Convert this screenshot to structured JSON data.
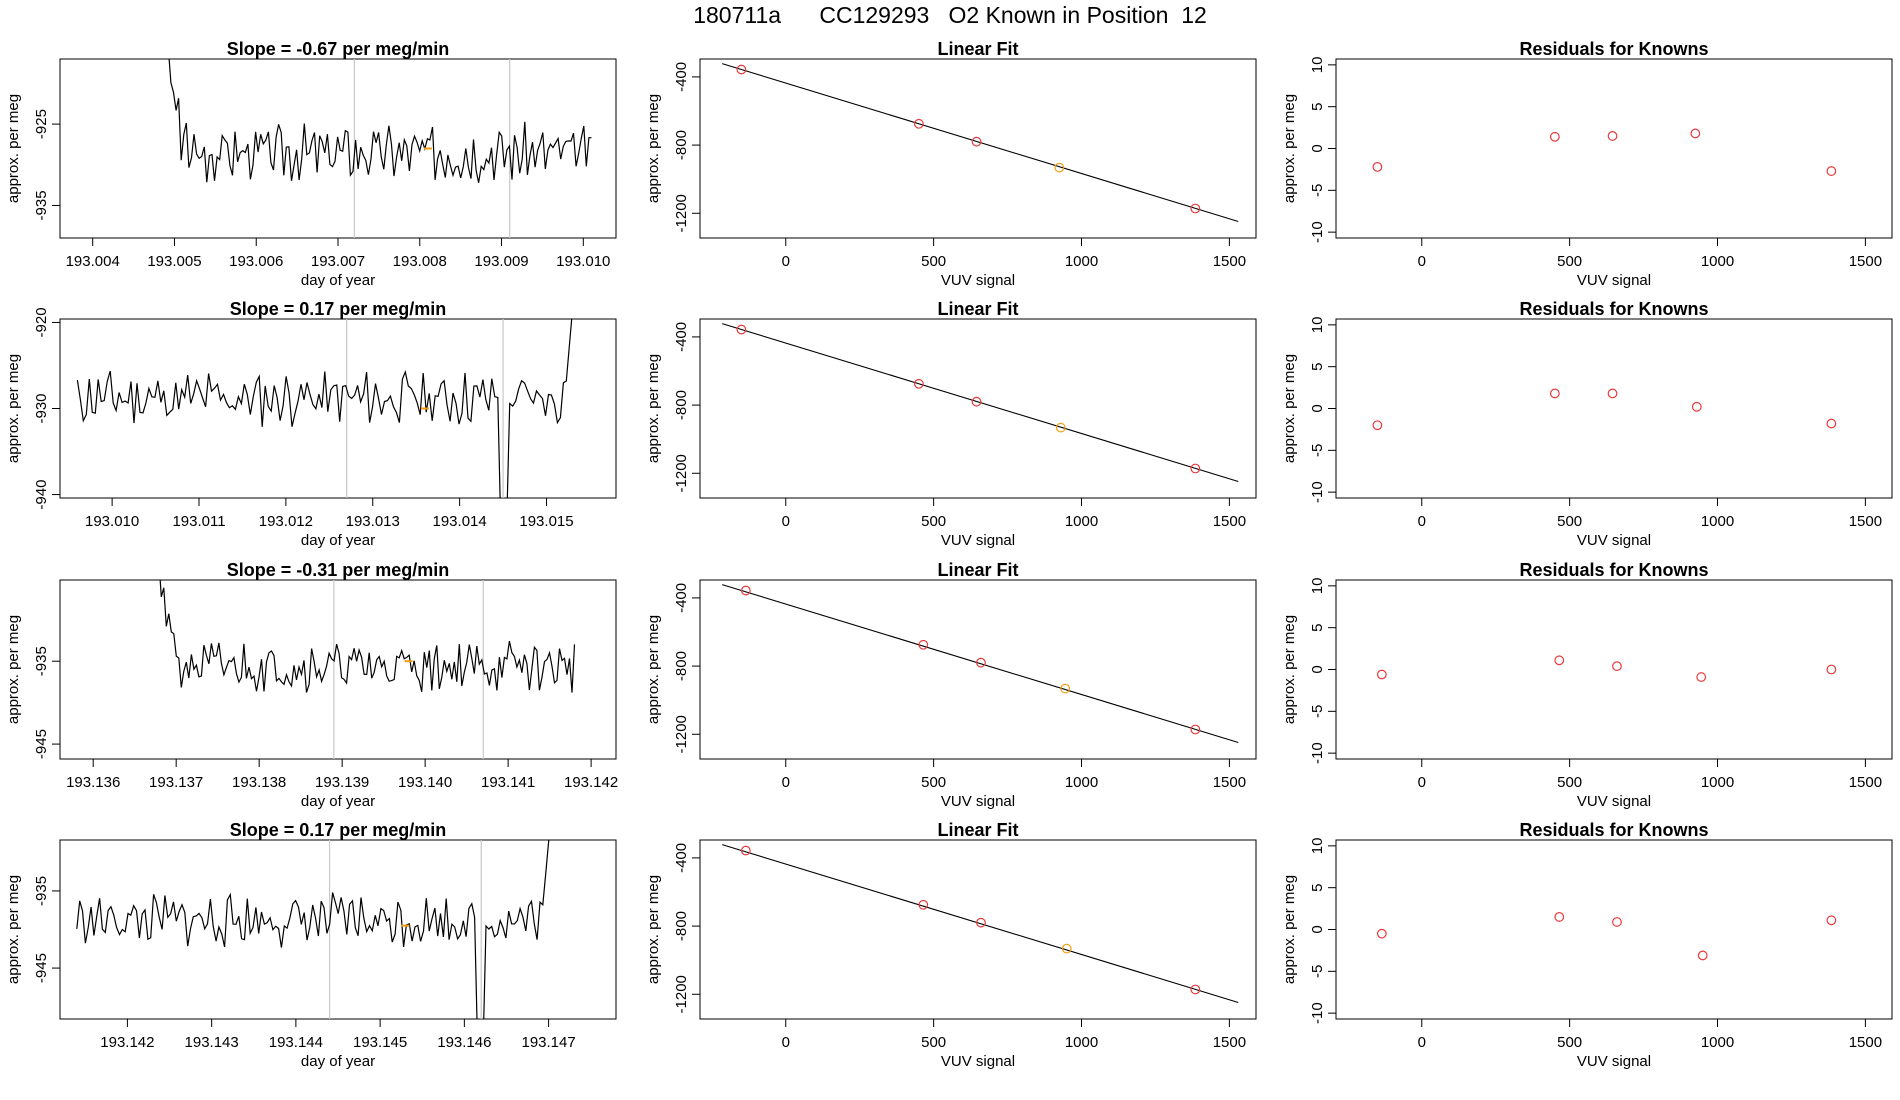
{
  "figure_title": "180711a      CC129293   O2 Known in Position  12",
  "colors": {
    "line": "#000000",
    "marker": "#e8393b",
    "highlight": "#f39c12",
    "guide": "#c8c8c8"
  },
  "chart_data": [
    {
      "type": "line",
      "row": 0,
      "panel": "timeseries",
      "title": "Slope =  -0.67  per meg/min",
      "xlabel": "day of year",
      "ylabel": "approx. per meg",
      "xlim": [
        193.0036,
        193.0104
      ],
      "ylim": [
        -939,
        -917
      ],
      "xticks": [
        193.004,
        193.005,
        193.006,
        193.007,
        193.008,
        193.009,
        193.01
      ],
      "xtick_labels": [
        "193.004",
        "193.005",
        "193.006",
        "193.007",
        "193.008",
        "193.009",
        "193.010"
      ],
      "yticks": [
        -925,
        -935
      ],
      "ytick_labels": [
        "-925",
        "-935"
      ],
      "vlines": [
        193.0072,
        193.0091
      ],
      "highlight_point": {
        "x": 193.0081,
        "y": -928
      },
      "x_start": 193.0048,
      "x_end": 193.0101,
      "y_base": -928.5,
      "y_amp": 2.8,
      "start_y": -908,
      "spike_at_end": false,
      "spike_at": null,
      "seed": 3
    },
    {
      "type": "scatter",
      "row": 0,
      "panel": "fit",
      "title": "Linear Fit",
      "xlabel": "VUV signal",
      "ylabel": "approx. per meg",
      "xlim": [
        -290,
        1590
      ],
      "ylim": [
        -1345,
        -295
      ],
      "xticks": [
        0,
        500,
        1000,
        1500
      ],
      "xtick_labels": [
        "0",
        "500",
        "1000",
        "1500"
      ],
      "yticks": [
        -400,
        -800,
        -1200
      ],
      "ytick_labels": [
        "-400",
        "-800",
        "-1200"
      ],
      "line": [
        [
          -215,
          -322
        ],
        [
          1530,
          -1248
        ]
      ],
      "points": [
        {
          "x": -150,
          "y": -357
        },
        {
          "x": 450,
          "y": -675
        },
        {
          "x": 645,
          "y": -780
        },
        {
          "x": 925,
          "y": -932,
          "highlight": true
        },
        {
          "x": 1385,
          "y": -1172
        }
      ]
    },
    {
      "type": "scatter",
      "row": 0,
      "panel": "residuals",
      "title": "Residuals for Knowns",
      "xlabel": "VUV signal",
      "ylabel": "approx. per meg",
      "xlim": [
        -290,
        1590
      ],
      "ylim": [
        -10.7,
        10.7
      ],
      "xticks": [
        0,
        500,
        1000,
        1500
      ],
      "xtick_labels": [
        "0",
        "500",
        "1000",
        "1500"
      ],
      "yticks": [
        10,
        5,
        0,
        -5,
        -10
      ],
      "ytick_labels": [
        "10",
        "5",
        "0",
        "-5",
        "-10"
      ],
      "points": [
        {
          "x": -150,
          "y": -2.2
        },
        {
          "x": 450,
          "y": 1.4
        },
        {
          "x": 645,
          "y": 1.5
        },
        {
          "x": 925,
          "y": 1.8
        },
        {
          "x": 1385,
          "y": -2.7
        }
      ]
    },
    {
      "type": "line",
      "row": 1,
      "panel": "timeseries",
      "title": "Slope =  0.17  per meg/min",
      "xlabel": "day of year",
      "ylabel": "approx. per meg",
      "xlim": [
        193.0094,
        193.0158
      ],
      "ylim": [
        -940.4,
        -919.6
      ],
      "xticks": [
        193.01,
        193.011,
        193.012,
        193.013,
        193.014,
        193.015
      ],
      "xtick_labels": [
        "193.010",
        "193.011",
        "193.012",
        "193.013",
        "193.014",
        "193.015"
      ],
      "yticks": [
        -920,
        -930,
        -940
      ],
      "ytick_labels": [
        "-920",
        "-930",
        "-940"
      ],
      "vlines": [
        193.0127,
        193.0145
      ],
      "highlight_point": {
        "x": 193.0136,
        "y": -930
      },
      "x_start": 193.0096,
      "x_end": 193.0154,
      "y_base": -928.8,
      "y_amp": 2.6,
      "start_y": null,
      "spike_at_end": true,
      "spike_at": 193.0145,
      "seed": 11
    },
    {
      "type": "scatter",
      "row": 1,
      "panel": "fit",
      "title": "Linear Fit",
      "xlabel": "VUV signal",
      "ylabel": "approx. per meg",
      "xlim": [
        -290,
        1590
      ],
      "ylim": [
        -1345,
        -295
      ],
      "xticks": [
        0,
        500,
        1000,
        1500
      ],
      "xtick_labels": [
        "0",
        "500",
        "1000",
        "1500"
      ],
      "yticks": [
        -400,
        -800,
        -1200
      ],
      "ytick_labels": [
        "-400",
        "-800",
        "-1200"
      ],
      "line": [
        [
          -215,
          -322
        ],
        [
          1530,
          -1248
        ]
      ],
      "points": [
        {
          "x": -150,
          "y": -357
        },
        {
          "x": 450,
          "y": -675
        },
        {
          "x": 645,
          "y": -780
        },
        {
          "x": 930,
          "y": -932,
          "highlight": true
        },
        {
          "x": 1385,
          "y": -1172
        }
      ]
    },
    {
      "type": "scatter",
      "row": 1,
      "panel": "residuals",
      "title": "Residuals for Knowns",
      "xlabel": "VUV signal",
      "ylabel": "approx. per meg",
      "xlim": [
        -290,
        1590
      ],
      "ylim": [
        -10.7,
        10.7
      ],
      "xticks": [
        0,
        500,
        1000,
        1500
      ],
      "xtick_labels": [
        "0",
        "500",
        "1000",
        "1500"
      ],
      "yticks": [
        10,
        5,
        0,
        -5,
        -10
      ],
      "ytick_labels": [
        "10",
        "5",
        "0",
        "-5",
        "-10"
      ],
      "points": [
        {
          "x": -150,
          "y": -2.0
        },
        {
          "x": 450,
          "y": 1.8
        },
        {
          "x": 645,
          "y": 1.8
        },
        {
          "x": 930,
          "y": 0.2
        },
        {
          "x": 1385,
          "y": -1.8
        }
      ]
    },
    {
      "type": "line",
      "row": 2,
      "panel": "timeseries",
      "title": "Slope =  -0.31  per meg/min",
      "xlabel": "day of year",
      "ylabel": "approx. per meg",
      "xlim": [
        193.1356,
        193.1423
      ],
      "ylim": [
        -946.8,
        -925.2
      ],
      "xticks": [
        193.136,
        193.137,
        193.138,
        193.139,
        193.14,
        193.141,
        193.142
      ],
      "xtick_labels": [
        "193.136",
        "193.137",
        "193.138",
        "193.139",
        "193.140",
        "193.141",
        "193.142"
      ],
      "yticks": [
        -935,
        -945
      ],
      "ytick_labels": [
        "-935",
        "-945"
      ],
      "vlines": [
        193.1389,
        193.1407
      ],
      "highlight_point": {
        "x": 193.1398,
        "y": -935
      },
      "x_start": 193.1367,
      "x_end": 193.1418,
      "y_base": -935.6,
      "y_amp": 2.5,
      "start_y": -918,
      "spike_at_end": false,
      "spike_at": null,
      "seed": 21
    },
    {
      "type": "scatter",
      "row": 2,
      "panel": "fit",
      "title": "Linear Fit",
      "xlabel": "VUV signal",
      "ylabel": "approx. per meg",
      "xlim": [
        -290,
        1590
      ],
      "ylim": [
        -1345,
        -295
      ],
      "xticks": [
        0,
        500,
        1000,
        1500
      ],
      "xtick_labels": [
        "0",
        "500",
        "1000",
        "1500"
      ],
      "yticks": [
        -400,
        -800,
        -1200
      ],
      "ytick_labels": [
        "-400",
        "-800",
        "-1200"
      ],
      "line": [
        [
          -215,
          -322
        ],
        [
          1530,
          -1248
        ]
      ],
      "points": [
        {
          "x": -135,
          "y": -357
        },
        {
          "x": 465,
          "y": -675
        },
        {
          "x": 660,
          "y": -780
        },
        {
          "x": 945,
          "y": -932,
          "highlight": true
        },
        {
          "x": 1385,
          "y": -1172
        }
      ]
    },
    {
      "type": "scatter",
      "row": 2,
      "panel": "residuals",
      "title": "Residuals for Knowns",
      "xlabel": "VUV signal",
      "ylabel": "approx. per meg",
      "xlim": [
        -290,
        1590
      ],
      "ylim": [
        -10.7,
        10.7
      ],
      "xticks": [
        0,
        500,
        1000,
        1500
      ],
      "xtick_labels": [
        "0",
        "500",
        "1000",
        "1500"
      ],
      "yticks": [
        10,
        5,
        0,
        -5,
        -10
      ],
      "ytick_labels": [
        "10",
        "5",
        "0",
        "-5",
        "-10"
      ],
      "points": [
        {
          "x": -135,
          "y": -0.6
        },
        {
          "x": 465,
          "y": 1.1
        },
        {
          "x": 660,
          "y": 0.4
        },
        {
          "x": 945,
          "y": -0.9
        },
        {
          "x": 1385,
          "y": 0.0
        }
      ]
    },
    {
      "type": "line",
      "row": 3,
      "panel": "timeseries",
      "title": "Slope =  0.17  per meg/min",
      "xlabel": "day of year",
      "ylabel": "approx. per meg",
      "xlim": [
        193.1412,
        193.1478
      ],
      "ylim": [
        -951.6,
        -928.4
      ],
      "xticks": [
        193.142,
        193.143,
        193.144,
        193.145,
        193.146,
        193.147
      ],
      "xtick_labels": [
        "193.142",
        "193.143",
        "193.144",
        "193.145",
        "193.146",
        "193.147"
      ],
      "yticks": [
        -935,
        -945
      ],
      "ytick_labels": [
        "-935",
        "-945"
      ],
      "vlines": [
        193.1444,
        193.1462
      ],
      "highlight_point": {
        "x": 193.1453,
        "y": -939.5
      },
      "x_start": 193.1414,
      "x_end": 193.1471,
      "y_base": -938.8,
      "y_amp": 2.7,
      "start_y": null,
      "spike_at_end": true,
      "spike_at": 193.1462,
      "seed": 33
    },
    {
      "type": "scatter",
      "row": 3,
      "panel": "fit",
      "title": "Linear Fit",
      "xlabel": "VUV signal",
      "ylabel": "approx. per meg",
      "xlim": [
        -290,
        1590
      ],
      "ylim": [
        -1345,
        -295
      ],
      "xticks": [
        0,
        500,
        1000,
        1500
      ],
      "xtick_labels": [
        "0",
        "500",
        "1000",
        "1500"
      ],
      "yticks": [
        -400,
        -800,
        -1200
      ],
      "ytick_labels": [
        "-400",
        "-800",
        "-1200"
      ],
      "line": [
        [
          -215,
          -322
        ],
        [
          1530,
          -1248
        ]
      ],
      "points": [
        {
          "x": -135,
          "y": -357
        },
        {
          "x": 465,
          "y": -675
        },
        {
          "x": 660,
          "y": -780
        },
        {
          "x": 950,
          "y": -932,
          "highlight": true
        },
        {
          "x": 1385,
          "y": -1172
        }
      ]
    },
    {
      "type": "scatter",
      "row": 3,
      "panel": "residuals",
      "title": "Residuals for Knowns",
      "xlabel": "VUV signal",
      "ylabel": "approx. per meg",
      "xlim": [
        -290,
        1590
      ],
      "ylim": [
        -10.7,
        10.7
      ],
      "xticks": [
        0,
        500,
        1000,
        1500
      ],
      "xtick_labels": [
        "0",
        "500",
        "1000",
        "1500"
      ],
      "yticks": [
        10,
        5,
        0,
        -5,
        -10
      ],
      "ytick_labels": [
        "10",
        "5",
        "0",
        "-5",
        "-10"
      ],
      "points": [
        {
          "x": -135,
          "y": -0.5
        },
        {
          "x": 465,
          "y": 1.5
        },
        {
          "x": 660,
          "y": 0.9
        },
        {
          "x": 950,
          "y": -3.1
        },
        {
          "x": 1385,
          "y": 1.1
        }
      ]
    }
  ]
}
